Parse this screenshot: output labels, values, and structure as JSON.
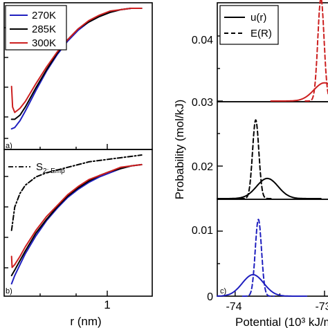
{
  "colors": {
    "270K": "#1f1fbf",
    "285K": "#000000",
    "300K": "#cc1f1f"
  },
  "chart_data": [
    {
      "type": "line",
      "panel_label": "a)",
      "xlabel": "",
      "ylabel": "",
      "grid": false,
      "legend_position": "top-left",
      "series": [
        {
          "name": "270K",
          "color": "#1f1fbf",
          "dash": "solid",
          "x": [
            0.07,
            0.1,
            0.15,
            0.2,
            0.3,
            0.4,
            0.5,
            0.6,
            0.7,
            0.8,
            0.9,
            1.0,
            1.1,
            1.2,
            1.3
          ],
          "y": [
            0.12,
            0.13,
            0.18,
            0.25,
            0.4,
            0.54,
            0.66,
            0.76,
            0.84,
            0.9,
            0.94,
            0.97,
            0.99,
            1.0,
            1.0
          ]
        },
        {
          "name": "285K",
          "color": "#000000",
          "dash": "solid",
          "x": [
            0.07,
            0.1,
            0.15,
            0.2,
            0.3,
            0.4,
            0.5,
            0.6,
            0.7,
            0.8,
            0.9,
            1.0,
            1.1,
            1.2,
            1.3
          ],
          "y": [
            0.19,
            0.19,
            0.22,
            0.28,
            0.42,
            0.55,
            0.67,
            0.77,
            0.85,
            0.9,
            0.94,
            0.97,
            0.99,
            1.0,
            1.0
          ]
        },
        {
          "name": "300K",
          "color": "#cc1f1f",
          "dash": "solid",
          "x": [
            0.07,
            0.08,
            0.1,
            0.15,
            0.2,
            0.3,
            0.4,
            0.5,
            0.6,
            0.7,
            0.8,
            0.9,
            1.0,
            1.1,
            1.2,
            1.3
          ],
          "y": [
            0.43,
            0.28,
            0.24,
            0.27,
            0.32,
            0.45,
            0.57,
            0.68,
            0.77,
            0.85,
            0.91,
            0.95,
            0.98,
            0.99,
            1.0,
            1.0
          ]
        }
      ]
    },
    {
      "type": "line",
      "panel_label": "b)",
      "xlabel": "r (nm)",
      "ylabel": "",
      "grid": false,
      "legend_position": "top-left",
      "x_ticks": [
        1
      ],
      "series": [
        {
          "name": "S2; Emp",
          "color": "#000000",
          "dash": "dash-dot",
          "x": [
            0.07,
            0.1,
            0.15,
            0.2,
            0.3,
            0.4,
            0.5,
            0.6,
            0.7,
            0.8,
            0.9,
            1.0,
            1.1,
            1.2,
            1.3
          ],
          "y": [
            0.45,
            0.62,
            0.72,
            0.78,
            0.84,
            0.87,
            0.89,
            0.91,
            0.93,
            0.95,
            0.96,
            0.97,
            0.98,
            0.99,
            1.0
          ]
        },
        {
          "name": "270K",
          "color": "#1f1fbf",
          "dash": "solid",
          "x": [
            0.07,
            0.1,
            0.15,
            0.2,
            0.3,
            0.4,
            0.5,
            0.6,
            0.7,
            0.8,
            0.9,
            1.0,
            1.1,
            1.2,
            1.3
          ],
          "y": [
            0.06,
            0.12,
            0.2,
            0.28,
            0.41,
            0.52,
            0.61,
            0.69,
            0.75,
            0.8,
            0.84,
            0.87,
            0.9,
            0.92,
            0.93
          ]
        },
        {
          "name": "285K",
          "color": "#000000",
          "dash": "solid",
          "x": [
            0.07,
            0.1,
            0.15,
            0.2,
            0.3,
            0.4,
            0.5,
            0.6,
            0.7,
            0.8,
            0.9,
            1.0,
            1.1,
            1.2,
            1.3
          ],
          "y": [
            0.12,
            0.16,
            0.23,
            0.3,
            0.43,
            0.53,
            0.62,
            0.7,
            0.76,
            0.81,
            0.85,
            0.88,
            0.9,
            0.92,
            0.93
          ]
        },
        {
          "name": "300K",
          "color": "#cc1f1f",
          "dash": "solid",
          "x": [
            0.07,
            0.075,
            0.1,
            0.15,
            0.2,
            0.3,
            0.4,
            0.5,
            0.6,
            0.7,
            0.8,
            0.9,
            1.0,
            1.1,
            1.2,
            1.3
          ],
          "y": [
            0.26,
            0.18,
            0.2,
            0.26,
            0.33,
            0.45,
            0.55,
            0.63,
            0.71,
            0.77,
            0.82,
            0.85,
            0.88,
            0.91,
            0.92,
            0.93
          ]
        }
      ]
    },
    {
      "type": "line",
      "panel_label": "c)",
      "xlabel": "Potential (10³ kJ/m",
      "ylabel": "Probability (mol/kJ)",
      "grid": false,
      "legend_position": "top-left",
      "y_tick_labels": [
        "0",
        "0.01",
        "0.02",
        "0.03",
        "0.04"
      ],
      "x_tick_labels": [
        "-74",
        "-73"
      ],
      "legend": [
        {
          "label": "u(r)",
          "dash": "solid"
        },
        {
          "label": "E(R)",
          "dash": "dashed"
        }
      ],
      "series": [
        {
          "color": "#cc1f1f",
          "dash": "solid",
          "baseline": 0.03,
          "center": -73.0,
          "sigma": 0.12,
          "peak": 0.0028
        },
        {
          "color": "#cc1f1f",
          "dash": "dashed",
          "baseline": 0.03,
          "center": -73.04,
          "sigma": 0.035,
          "peak": 0.0158
        },
        {
          "color": "#000000",
          "dash": "solid",
          "baseline": 0.015,
          "center": -73.64,
          "sigma": 0.12,
          "peak": 0.0031
        },
        {
          "color": "#000000",
          "dash": "dashed",
          "baseline": 0.015,
          "center": -73.77,
          "sigma": 0.035,
          "peak": 0.0121
        },
        {
          "color": "#1f1fbf",
          "dash": "solid",
          "baseline": 0.0,
          "center": -73.8,
          "sigma": 0.12,
          "peak": 0.0033
        },
        {
          "color": "#1f1fbf",
          "dash": "dashed",
          "baseline": 0.0,
          "center": -73.74,
          "sigma": 0.035,
          "peak": 0.0118
        }
      ]
    }
  ]
}
